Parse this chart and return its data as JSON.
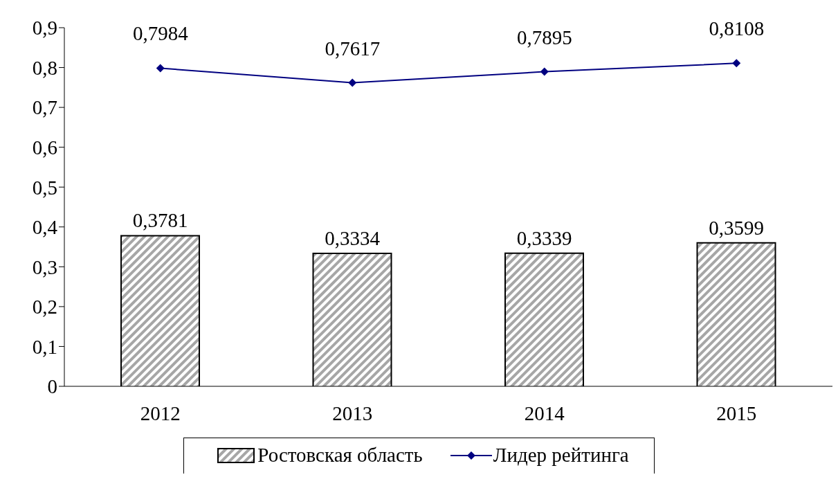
{
  "chart_data": {
    "type": "bar",
    "categories": [
      "2012",
      "2013",
      "2014",
      "2015"
    ],
    "series": [
      {
        "name": "Ростовская область",
        "color": "#a6a6a6",
        "values": [
          0.3781,
          0.3334,
          0.3339,
          0.3599
        ],
        "value_labels": [
          "0,3781",
          "0,3334",
          "0,3339",
          "0,3599"
        ]
      },
      {
        "name": "Лидер рейтинга",
        "type": "line",
        "color": "#000080",
        "values": [
          0.7984,
          0.7617,
          0.7895,
          0.8108
        ],
        "value_labels": [
          "0,7984",
          "0,7617",
          "0,7895",
          "0,8108"
        ]
      }
    ],
    "ylim": [
      0,
      0.9
    ],
    "yticks": [
      {
        "value": 0,
        "label": "0"
      },
      {
        "value": 0.1,
        "label": "0,1"
      },
      {
        "value": 0.2,
        "label": "0,2"
      },
      {
        "value": 0.3,
        "label": "0,3"
      },
      {
        "value": 0.4,
        "label": "0,4"
      },
      {
        "value": 0.5,
        "label": "0,5"
      },
      {
        "value": 0.6,
        "label": "0,6"
      },
      {
        "value": 0.7,
        "label": "0,7"
      },
      {
        "value": 0.8,
        "label": "0,8"
      },
      {
        "value": 0.9,
        "label": "0,9"
      }
    ],
    "grid": false,
    "legend": "bottom",
    "marker": "diamond",
    "line_style": "solid"
  }
}
